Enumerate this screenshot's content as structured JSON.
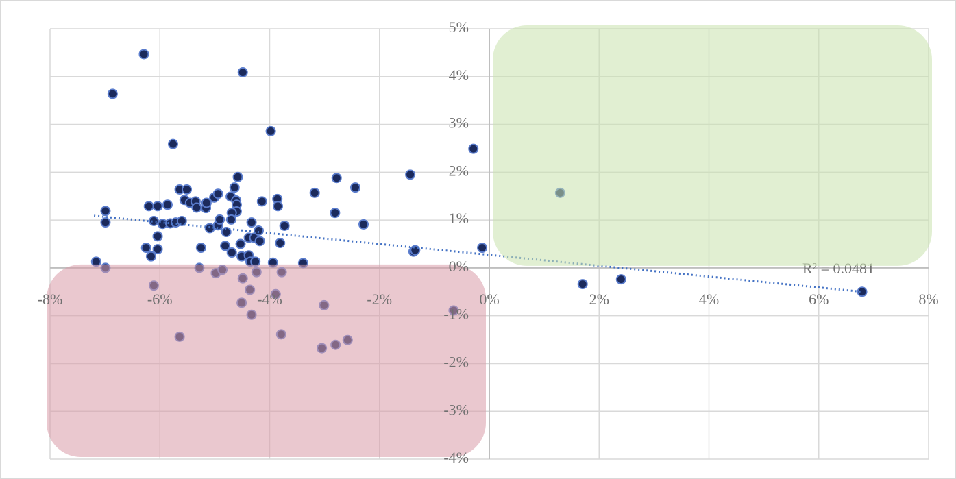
{
  "chart_data": {
    "type": "scatter",
    "x": [
      -6.29,
      -6.86,
      -4.49,
      -5.76,
      -3.98,
      -0.29,
      -1.44,
      1.29,
      -6.99,
      -6.99,
      -7.16,
      -6.99,
      -6.2,
      -6.04,
      -5.86,
      -6.11,
      -5.95,
      -5.81,
      -5.71,
      -5.6,
      -6.04,
      -6.25,
      -6.04,
      -6.16,
      -5.64,
      -5.51,
      -5.55,
      -5.45,
      -5.35,
      -5.33,
      -5.16,
      -5.15,
      -5.01,
      -4.94,
      -5.09,
      -4.94,
      -4.91,
      -5.25,
      -5.28,
      -6.11,
      -5.64,
      -4.98,
      -4.86,
      -4.81,
      -4.79,
      -4.69,
      -4.71,
      -4.64,
      -4.58,
      -4.61,
      -4.6,
      -4.6,
      -4.69,
      -4.7,
      -4.53,
      -4.51,
      -4.49,
      -4.51,
      -4.33,
      -4.38,
      -4.28,
      -4.2,
      -4.18,
      -4.38,
      -4.35,
      -4.26,
      -4.24,
      -4.36,
      -4.33,
      -4.14,
      -3.86,
      -3.85,
      -3.94,
      -3.81,
      -3.73,
      -3.78,
      -3.89,
      -3.79,
      -3.39,
      -3.18,
      -2.78,
      -2.81,
      -2.44,
      -2.29,
      -3.01,
      -3.05,
      -2.8,
      -2.58,
      -1.38,
      -1.35,
      -0.13,
      -0.65,
      1.7,
      2.4,
      6.79
    ],
    "values": [
      4.47,
      3.64,
      4.09,
      2.59,
      2.86,
      2.49,
      1.95,
      1.57,
      1.19,
      0.95,
      0.13,
      0.0,
      1.29,
      1.29,
      1.32,
      0.98,
      0.92,
      0.93,
      0.95,
      0.98,
      0.66,
      0.42,
      0.39,
      0.24,
      1.64,
      1.64,
      1.42,
      1.36,
      1.39,
      1.26,
      1.25,
      1.36,
      1.47,
      1.55,
      0.83,
      0.89,
      1.01,
      0.42,
      0.0,
      -0.37,
      -1.44,
      -0.11,
      -0.04,
      0.46,
      0.75,
      0.32,
      1.49,
      1.68,
      1.9,
      1.41,
      1.32,
      1.18,
      1.15,
      1.01,
      0.5,
      0.24,
      -0.22,
      -0.73,
      0.95,
      0.63,
      0.63,
      0.78,
      0.56,
      0.26,
      0.13,
      0.13,
      -0.09,
      -0.46,
      -0.98,
      1.39,
      1.44,
      1.29,
      0.11,
      0.52,
      0.88,
      -0.09,
      -0.55,
      -1.39,
      0.1,
      1.57,
      1.88,
      1.15,
      1.68,
      0.91,
      -0.78,
      -1.68,
      -1.61,
      -1.51,
      0.34,
      0.37,
      0.42,
      -0.89,
      -0.34,
      -0.24,
      -0.5
    ],
    "color": "#1b2a5c",
    "xlim": [
      -8,
      8
    ],
    "ylim": [
      -4,
      5
    ],
    "xticks": [
      {
        "value": -8,
        "label": "-8%"
      },
      {
        "value": -6,
        "label": "-6%"
      },
      {
        "value": -4,
        "label": "-4%"
      },
      {
        "value": -2,
        "label": "-2%"
      },
      {
        "value": 0,
        "label": "0%"
      },
      {
        "value": 2,
        "label": "2%"
      },
      {
        "value": 4,
        "label": "4%"
      },
      {
        "value": 6,
        "label": "6%"
      },
      {
        "value": 8,
        "label": "8%"
      }
    ],
    "yticks": [
      {
        "value": -4,
        "label": "-4%"
      },
      {
        "value": -3,
        "label": "-3%"
      },
      {
        "value": -2,
        "label": "-2%"
      },
      {
        "value": -1,
        "label": "-1%"
      },
      {
        "value": 0,
        "label": "0%"
      },
      {
        "value": 1,
        "label": "1%"
      },
      {
        "value": 2,
        "label": "2%"
      },
      {
        "value": 3,
        "label": "3%"
      },
      {
        "value": 4,
        "label": "4%"
      },
      {
        "value": 5,
        "label": "5%"
      }
    ],
    "grid": true,
    "trendline": {
      "x": [
        -7.2,
        6.79
      ],
      "y": [
        1.09,
        -0.5
      ],
      "color": "#4472c4",
      "label": "R² = 0.0481"
    },
    "regions": [
      {
        "xlim": [
          0,
          8
        ],
        "ylim": [
          0,
          5
        ],
        "color": "#c9e2ad"
      },
      {
        "xlim": [
          -8,
          0
        ],
        "ylim": [
          -4,
          0
        ],
        "color": "#d89aa8"
      }
    ]
  }
}
